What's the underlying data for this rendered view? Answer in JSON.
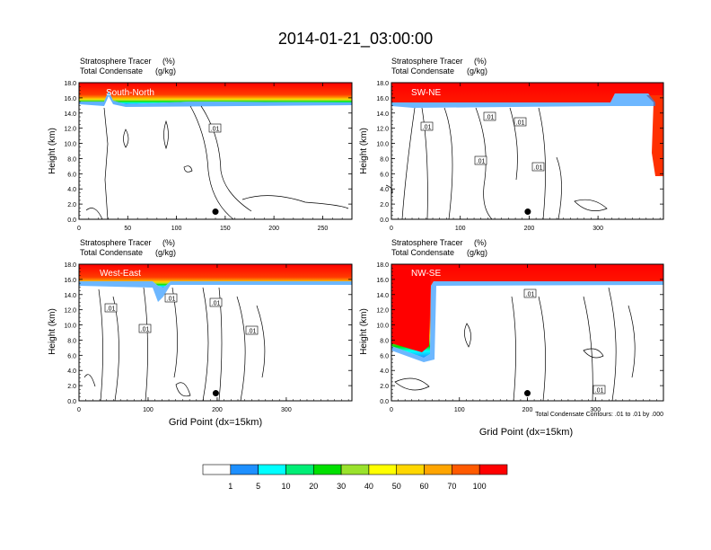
{
  "figure": {
    "title": "2014-01-21_03:00:00",
    "footnote": "Total Condensate Contours: .01 to .01 by .000",
    "xlabel": "Grid Point (dx=15km)",
    "ylabel": "Height (km)",
    "header_left": "Stratosphere Tracer",
    "header_left_unit": "(%)",
    "header_left2": "Total Condensate",
    "header_left2_unit": "(g/kg)"
  },
  "colorbar": {
    "levels": [
      "1",
      "5",
      "10",
      "20",
      "30",
      "40",
      "50",
      "60",
      "70",
      "100"
    ],
    "colors": [
      "#ffffff",
      "#1e90ff",
      "#00ffff",
      "#00ee76",
      "#00e000",
      "#9ae22c",
      "#ffff00",
      "#ffd700",
      "#ffa500",
      "#ff5a00",
      "#ff0000"
    ]
  },
  "chart_data": [
    {
      "type": "heatmap",
      "panel_label": "South-North",
      "xlim": [
        0,
        280
      ],
      "xticks": [
        0,
        50,
        100,
        150,
        200,
        250
      ],
      "ylim": [
        0,
        18
      ],
      "yticks": [
        0.0,
        2.0,
        4.0,
        6.0,
        8.0,
        10.0,
        12.0,
        14.0,
        16.0,
        18.0
      ],
      "tracer_boundary_km": [
        [
          0,
          15.6
        ],
        [
          30,
          15.4
        ],
        [
          34,
          14.0
        ],
        [
          40,
          15.4
        ],
        [
          100,
          15.8
        ],
        [
          280,
          15.9
        ]
      ],
      "contour_label": ".01",
      "marker": {
        "x": 140,
        "y": 1.0
      }
    },
    {
      "type": "heatmap",
      "panel_label": "SW-NE",
      "xlim": [
        0,
        395
      ],
      "xticks": [
        0,
        100,
        200,
        300
      ],
      "ylim": [
        0,
        18
      ],
      "yticks": [
        0.0,
        2.0,
        4.0,
        6.0,
        8.0,
        10.0,
        12.0,
        14.0,
        16.0,
        18.0
      ],
      "tracer_boundary_km": [
        [
          0,
          15.4
        ],
        [
          60,
          15.3
        ],
        [
          200,
          15.7
        ],
        [
          320,
          15.8
        ],
        [
          330,
          16.4
        ],
        [
          380,
          16.4
        ],
        [
          395,
          6.0
        ]
      ],
      "contour_label": ".01",
      "marker": {
        "x": 198,
        "y": 1.0
      }
    },
    {
      "type": "heatmap",
      "panel_label": "West-East",
      "xlim": [
        0,
        395
      ],
      "xticks": [
        0,
        100,
        200,
        300
      ],
      "ylim": [
        0,
        18
      ],
      "yticks": [
        0.0,
        2.0,
        4.0,
        6.0,
        8.0,
        10.0,
        12.0,
        14.0,
        16.0,
        18.0
      ],
      "tracer_boundary_km": [
        [
          0,
          15.3
        ],
        [
          110,
          15.2
        ],
        [
          120,
          13.0
        ],
        [
          130,
          15.2
        ],
        [
          395,
          15.9
        ]
      ],
      "contour_label": ".01",
      "marker": {
        "x": 198,
        "y": 1.0
      }
    },
    {
      "type": "heatmap",
      "panel_label": "NW-SE",
      "xlim": [
        0,
        400
      ],
      "xticks": [
        0,
        100,
        200,
        300
      ],
      "ylim": [
        0,
        18
      ],
      "yticks": [
        0.0,
        2.0,
        4.0,
        6.0,
        8.0,
        10.0,
        12.0,
        14.0,
        16.0,
        18.0
      ],
      "tracer_boundary_km": [
        [
          0,
          6.8
        ],
        [
          55,
          6.0
        ],
        [
          60,
          15.6
        ],
        [
          400,
          15.9
        ]
      ],
      "contour_label": ".01",
      "marker": {
        "x": 200,
        "y": 1.0
      }
    }
  ]
}
